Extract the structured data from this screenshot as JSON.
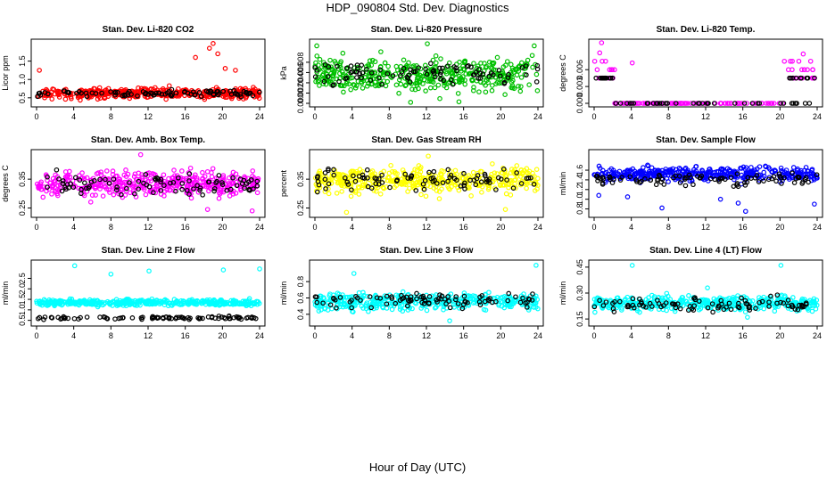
{
  "figure": {
    "title": "HDP_090804  Std. Dev. Diagnostics",
    "xlabel": "Hour of Day (UTC)"
  },
  "chart_data": [
    {
      "type": "scatter",
      "title": "Stan. Dev. Li-820 CO2",
      "ylabel": "Licor ppm",
      "xlim": [
        0,
        24
      ],
      "xticks": [
        "0",
        "4",
        "8",
        "12",
        "16",
        "20",
        "24"
      ],
      "ylim": [
        0.35,
        2.0
      ],
      "yticks": [
        {
          "v": 0.5,
          "label": "0.5"
        },
        {
          "v": 1.0,
          "label": "1.0"
        },
        {
          "v": 1.5,
          "label": "1.5"
        }
      ],
      "color": "#ff0000",
      "level": 0.62,
      "spread": 0.1,
      "black_level": 0.62,
      "black_spread": 0.06,
      "outliers": [
        {
          "x": 0.3,
          "y": 1.25
        },
        {
          "x": 17.1,
          "y": 1.6
        },
        {
          "x": 18.6,
          "y": 1.85
        },
        {
          "x": 19.0,
          "y": 1.98
        },
        {
          "x": 19.5,
          "y": 1.7
        },
        {
          "x": 20.3,
          "y": 1.3
        },
        {
          "x": 21.4,
          "y": 1.25
        }
      ],
      "seed": 11
    },
    {
      "type": "scatter",
      "title": "Stan. Dev. Li-820 Pressure",
      "ylabel": "kPa",
      "xlim": [
        0,
        24
      ],
      "xticks": [
        "0",
        "4",
        "8",
        "12",
        "16",
        "20",
        "24"
      ],
      "ylim": [
        0.0,
        0.0118
      ],
      "yticks": [
        {
          "v": 0.0,
          "label": "0.000"
        },
        {
          "v": 0.002,
          "label": "0.002"
        },
        {
          "v": 0.004,
          "label": "0.004"
        },
        {
          "v": 0.006,
          "label": "0.006"
        },
        {
          "v": 0.008,
          "label": "0.008"
        }
      ],
      "color": "#00c000",
      "level": 0.0055,
      "spread": 0.0022,
      "black_level": 0.0058,
      "black_spread": 0.0015,
      "outliers": [
        {
          "x": 0.2,
          "y": 0.0112
        },
        {
          "x": 12.1,
          "y": 0.0116
        },
        {
          "x": 23.6,
          "y": 0.0112
        },
        {
          "x": 10.3,
          "y": 0.0002
        },
        {
          "x": 15.5,
          "y": 0.0003
        }
      ],
      "seed": 23
    },
    {
      "type": "scatter",
      "title": "Stan. Dev. Li-820 Temp.",
      "ylabel": "degrees C",
      "xlim": [
        0,
        24
      ],
      "xticks": [
        "0",
        "4",
        "8",
        "12",
        "16",
        "20",
        "24"
      ],
      "ylim": [
        0.0,
        0.0108
      ],
      "yticks": [
        {
          "v": 0.0,
          "label": "0.000"
        },
        {
          "v": 0.003,
          "label": "0.003"
        },
        {
          "v": 0.006,
          "label": "0.006"
        }
      ],
      "color": "#ff00ff",
      "mode": "discrete",
      "levels": [
        0,
        0.0045,
        0.006,
        0.0075
      ],
      "active_ranges": [
        [
          0,
          2.2
        ],
        [
          20.4,
          24
        ]
      ],
      "black_level": 0.0045,
      "outliers": [
        {
          "x": 0.8,
          "y": 0.0108
        },
        {
          "x": 0.6,
          "y": 0.009
        },
        {
          "x": 4.1,
          "y": 0.0072
        },
        {
          "x": 22.5,
          "y": 0.0088
        }
      ],
      "seed": 5
    },
    {
      "type": "scatter",
      "title": "Stan. Dev. Amb. Box Temp.",
      "ylabel": "degrees C",
      "xlim": [
        0,
        24
      ],
      "xticks": [
        "0",
        "4",
        "8",
        "12",
        "16",
        "20",
        "24"
      ],
      "ylim": [
        0.23,
        0.44
      ],
      "yticks": [
        {
          "v": 0.25,
          "label": "0.25"
        },
        {
          "v": 0.35,
          "label": "0.35"
        }
      ],
      "color": "#ff00ff",
      "level": 0.335,
      "spread": 0.03,
      "black_level": 0.335,
      "black_spread": 0.025,
      "outliers": [
        {
          "x": 11.2,
          "y": 0.435
        },
        {
          "x": 23.2,
          "y": 0.24
        },
        {
          "x": 18.4,
          "y": 0.245
        }
      ],
      "seed": 37
    },
    {
      "type": "scatter",
      "title": "Stan. Dev. Gas Stream RH",
      "ylabel": "percent",
      "xlim": [
        0,
        24
      ],
      "xticks": [
        "0",
        "4",
        "8",
        "12",
        "16",
        "20",
        "24"
      ],
      "ylim": [
        0.23,
        0.44
      ],
      "yticks": [
        {
          "v": 0.25,
          "label": "0.25"
        },
        {
          "v": 0.35,
          "label": "0.35"
        }
      ],
      "color": "#ffff00",
      "level": 0.345,
      "spread": 0.03,
      "black_level": 0.345,
      "black_spread": 0.025,
      "outliers": [
        {
          "x": 3.4,
          "y": 0.235
        },
        {
          "x": 12.2,
          "y": 0.43
        },
        {
          "x": 20.5,
          "y": 0.245
        }
      ],
      "seed": 41
    },
    {
      "type": "scatter",
      "title": "Stan. Dev. Sample Flow",
      "ylabel": "ml/min",
      "xlim": [
        0,
        24
      ],
      "xticks": [
        "0",
        "4",
        "8",
        "12",
        "16",
        "20",
        "24"
      ],
      "ylim": [
        0.7,
        1.95
      ],
      "yticks": [
        {
          "v": 0.8,
          "label": "0.8"
        },
        {
          "v": 1.0,
          "label": "1.0"
        },
        {
          "v": 1.2,
          "label": "1.2"
        },
        {
          "v": 1.4,
          "label": "1.4"
        },
        {
          "v": 1.6,
          "label": "1.6"
        }
      ],
      "color": "#0000ff",
      "level": 1.52,
      "spread": 0.1,
      "black_level": 1.42,
      "black_spread": 0.1,
      "outliers": [
        {
          "x": 0.5,
          "y": 1.08
        },
        {
          "x": 3.6,
          "y": 1.05
        },
        {
          "x": 7.3,
          "y": 0.82
        },
        {
          "x": 13.6,
          "y": 1.0
        },
        {
          "x": 15.5,
          "y": 0.92
        },
        {
          "x": 16.3,
          "y": 0.75
        },
        {
          "x": 23.7,
          "y": 0.9
        }
      ],
      "seed": 53
    },
    {
      "type": "scatter",
      "title": "Stan. Dev. Line 2 Flow",
      "ylabel": "ml/min",
      "xlim": [
        0,
        24
      ],
      "xticks": [
        "0",
        "4",
        "8",
        "12",
        "16",
        "20",
        "24"
      ],
      "ylim": [
        0.4,
        3.2
      ],
      "yticks": [
        {
          "v": 0.5,
          "label": "0.5"
        },
        {
          "v": 1.0,
          "label": "1.0"
        },
        {
          "v": 1.5,
          "label": "1.5"
        },
        {
          "v": 2.0,
          "label": "2.0"
        },
        {
          "v": 2.5,
          "label": "2.5"
        }
      ],
      "color": "#00ffff",
      "level": 1.35,
      "spread": 0.1,
      "black_level": 0.62,
      "black_spread": 0.05,
      "outliers": [
        {
          "x": 4.1,
          "y": 3.1
        },
        {
          "x": 8.0,
          "y": 2.7
        },
        {
          "x": 12.1,
          "y": 2.85
        },
        {
          "x": 20.1,
          "y": 2.9
        },
        {
          "x": 24.0,
          "y": 2.95
        }
      ],
      "seed": 67
    },
    {
      "type": "scatter",
      "title": "Stan. Dev. Line 3 Flow",
      "ylabel": "ml/min",
      "xlim": [
        0,
        24
      ],
      "xticks": [
        "0",
        "4",
        "8",
        "12",
        "16",
        "20",
        "24"
      ],
      "ylim": [
        0.3,
        1.02
      ],
      "yticks": [
        {
          "v": 0.4,
          "label": "0.4"
        },
        {
          "v": 0.6,
          "label": "0.6"
        },
        {
          "v": 0.8,
          "label": "0.8"
        }
      ],
      "color": "#00ffff",
      "level": 0.55,
      "spread": 0.07,
      "black_level": 0.57,
      "black_spread": 0.06,
      "outliers": [
        {
          "x": 4.2,
          "y": 0.9
        },
        {
          "x": 14.5,
          "y": 0.32
        },
        {
          "x": 23.8,
          "y": 1.0
        }
      ],
      "seed": 71
    },
    {
      "type": "scatter",
      "title": "Stan. Dev. Line 4 (LT) Flow",
      "ylabel": "ml/min",
      "xlim": [
        0,
        24
      ],
      "xticks": [
        "0",
        "4",
        "8",
        "12",
        "16",
        "20",
        "24"
      ],
      "ylim": [
        0.13,
        0.47
      ],
      "yticks": [
        {
          "v": 0.15,
          "label": "0.15"
        },
        {
          "v": 0.3,
          "label": "0.30"
        },
        {
          "v": 0.45,
          "label": "0.45"
        }
      ],
      "color": "#00ffff",
      "level": 0.24,
      "spread": 0.03,
      "black_level": 0.23,
      "black_spread": 0.03,
      "outliers": [
        {
          "x": 4.1,
          "y": 0.46
        },
        {
          "x": 20.1,
          "y": 0.46
        },
        {
          "x": 12.2,
          "y": 0.33
        },
        {
          "x": 16.5,
          "y": 0.16
        }
      ],
      "seed": 89
    }
  ]
}
